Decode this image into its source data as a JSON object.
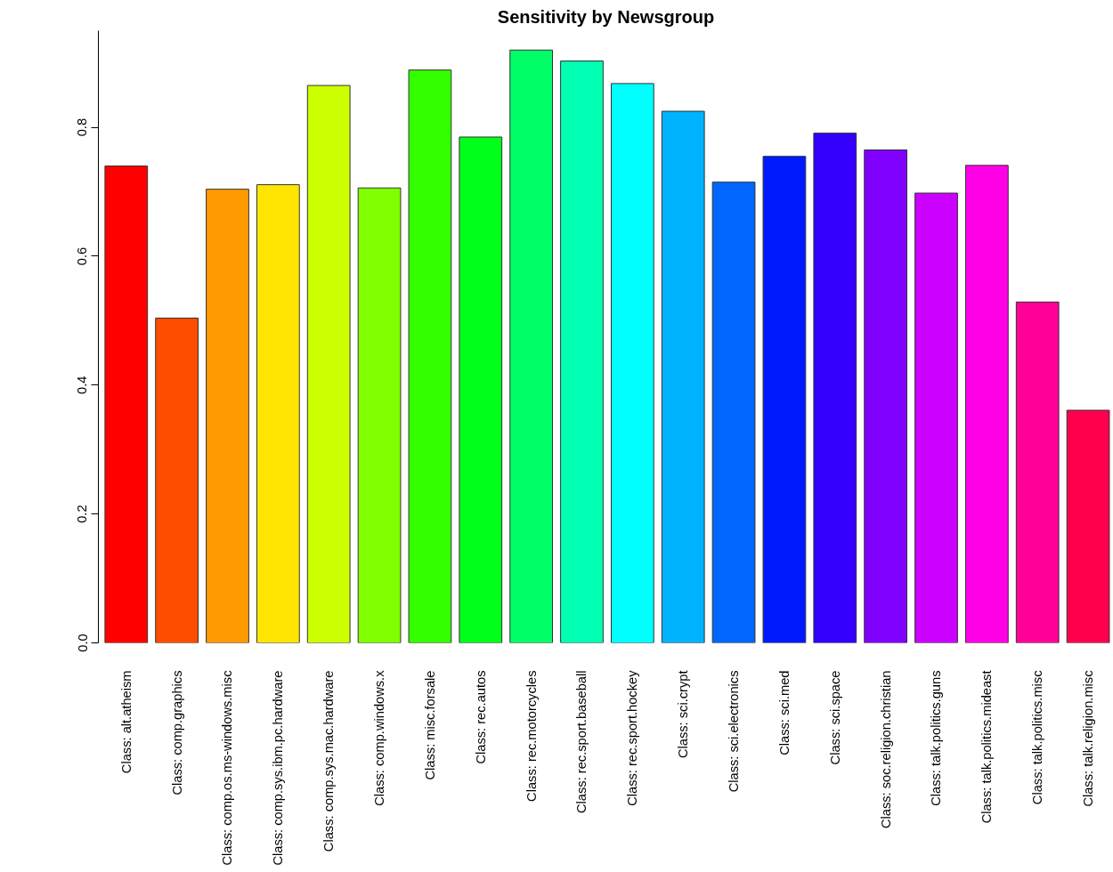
{
  "chart_data": {
    "type": "bar",
    "title": "Sensitivity by Newsgroup",
    "categories": [
      "Class: alt.atheism",
      "Class: comp.graphics",
      "Class: comp.os.ms-windows.misc",
      "Class: comp.sys.ibm.pc.hardware",
      "Class: comp.sys.mac.hardware",
      "Class: comp.windows.x",
      "Class: misc.forsale",
      "Class: rec.autos",
      "Class: rec.motorcycles",
      "Class: rec.sport.baseball",
      "Class: rec.sport.hockey",
      "Class: sci.crypt",
      "Class: sci.electronics",
      "Class: sci.med",
      "Class: sci.space",
      "Class: soc.religion.christian",
      "Class: talk.politics.guns",
      "Class: talk.politics.mideast",
      "Class: talk.politics.misc",
      "Class: talk.religion.misc"
    ],
    "values": [
      0.74,
      0.504,
      0.704,
      0.711,
      0.865,
      0.706,
      0.889,
      0.785,
      0.92,
      0.903,
      0.868,
      0.825,
      0.715,
      0.755,
      0.791,
      0.765,
      0.698,
      0.741,
      0.529,
      0.361
    ],
    "colors": [
      "#ff0000",
      "#ff4d00",
      "#ff9900",
      "#ffe500",
      "#ccff00",
      "#80ff00",
      "#33ff00",
      "#00ff19",
      "#00ff66",
      "#00ffb2",
      "#00ffff",
      "#00b3ff",
      "#0066ff",
      "#001aff",
      "#3300ff",
      "#7f00ff",
      "#cc00ff",
      "#ff00e6",
      "#ff0099",
      "#ff004d"
    ],
    "ylim": [
      0,
      0.95
    ],
    "yticks": [
      {
        "value": 0,
        "label": "0.0"
      },
      {
        "value": 0.2,
        "label": "0.2"
      },
      {
        "value": 0.4,
        "label": "0.4"
      },
      {
        "value": 0.6,
        "label": "0.6"
      },
      {
        "value": 0.8,
        "label": "0.8"
      }
    ],
    "grid": false
  }
}
